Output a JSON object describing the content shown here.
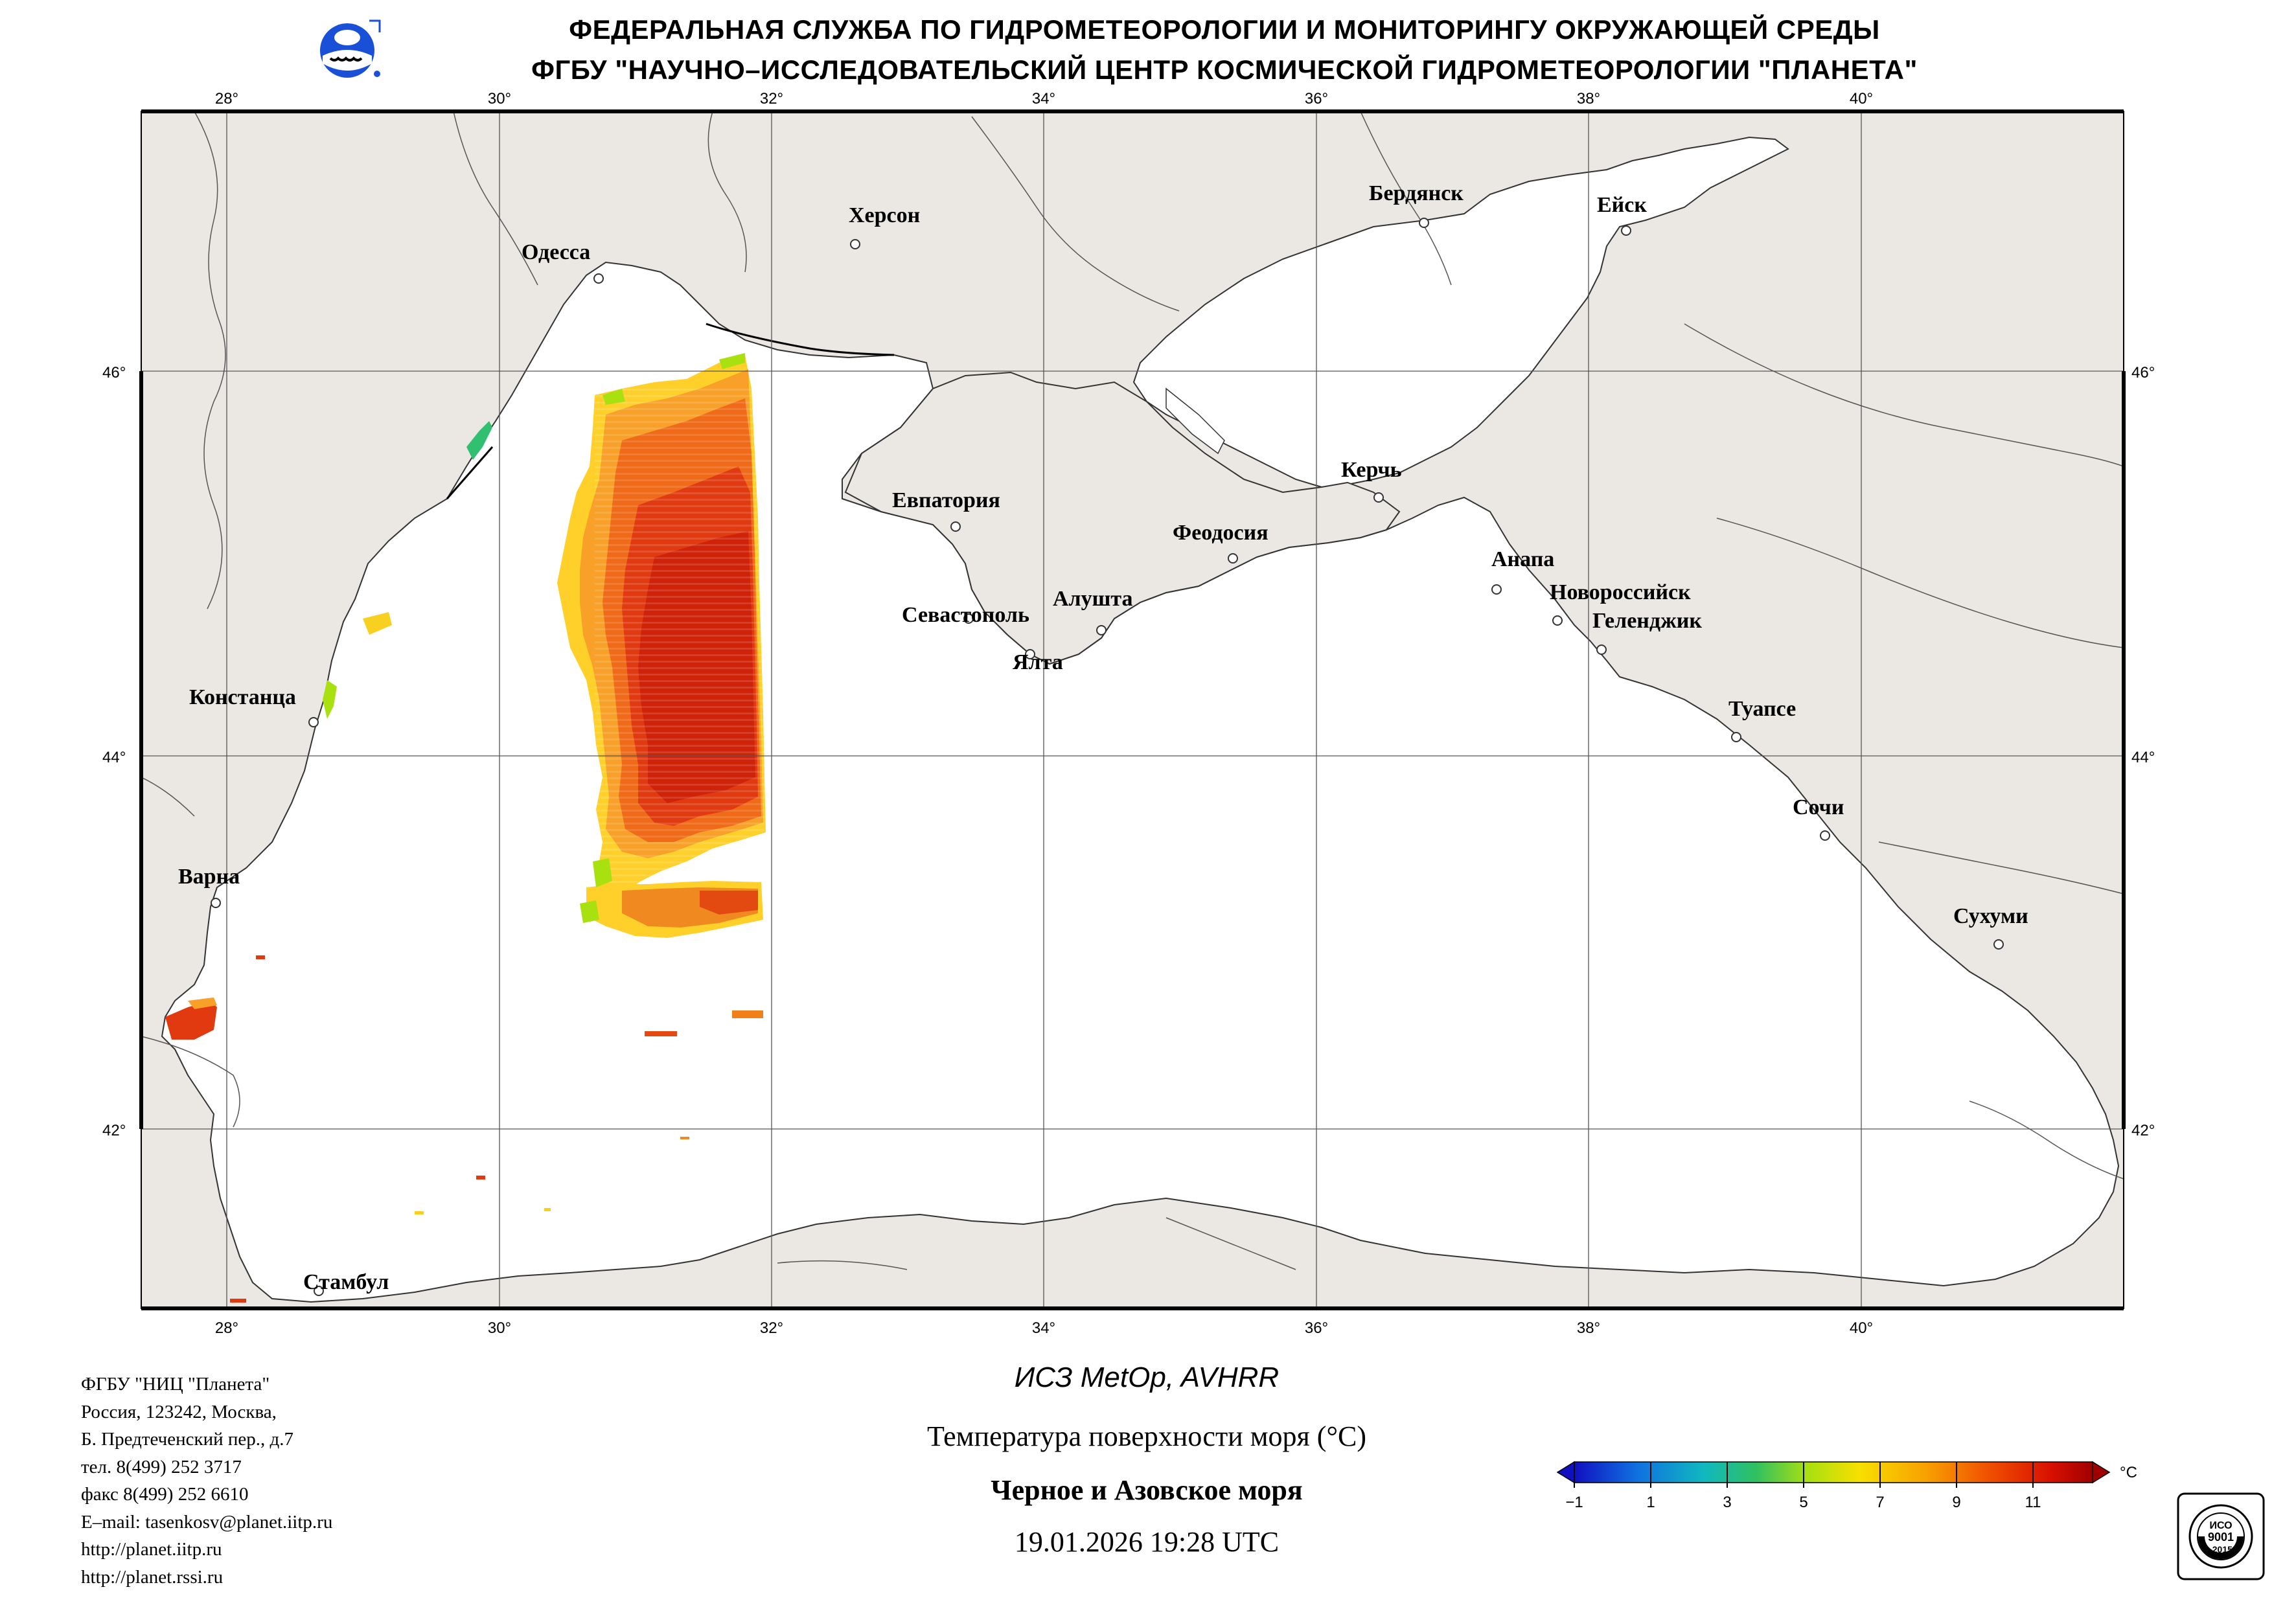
{
  "header": {
    "line1": "ФЕДЕРАЛЬНАЯ СЛУЖБА ПО ГИДРОМЕТЕОРОЛОГИИ И МОНИТОРИНГУ ОКРУЖАЮЩЕЙ СРЕДЫ",
    "line2": "ФГБУ \"НАУЧНО–ИССЛЕДОВАТЕЛЬСКИЙ ЦЕНТР КОСМИЧЕСКОЙ ГИДРОМЕТЕОРОЛОГИИ \"ПЛАНЕТА\""
  },
  "map": {
    "lon_labels": [
      "28°",
      "30°",
      "32°",
      "34°",
      "36°",
      "38°",
      "40°"
    ],
    "lat_labels": [
      "46°",
      "44°",
      "42°"
    ],
    "cities": {
      "odessa": "Одесса",
      "kherson": "Херсон",
      "berdyansk": "Бердянск",
      "yeysk": "Ейск",
      "evpatoria": "Евпатория",
      "kerch": "Керчь",
      "feodosia": "Феодосия",
      "anapa": "Анапа",
      "novorossiysk": "Новороссийск",
      "gelendzhik": "Геленджик",
      "sevastopol": "Севастополь",
      "alushta": "Алушта",
      "yalta": "Ялта",
      "constanta": "Констанца",
      "tuapse": "Туапсе",
      "sochi": "Сочи",
      "varna": "Варна",
      "sukhumi": "Сухуми",
      "istanbul": "Стамбул"
    },
    "colors": {
      "land": "#ebe7e3",
      "water": "#ffffff",
      "border": "#000000"
    }
  },
  "footer": {
    "lines": [
      "ФГБУ \"НИЦ \"Планета\"",
      "Россия, 123242, Москва,",
      "Б. Предтеченский пер., д.7",
      "тел. 8(499) 252 3717",
      "факс 8(499) 252 6610",
      "E–mail: tasenkosv@planet.iitp.ru",
      "http://planet.iitp.ru",
      "http://planet.rssi.ru"
    ]
  },
  "caption": {
    "satellite": "ИСЗ MetOp, AVHRR",
    "parameter": "Температура поверхности моря (°C)",
    "region": "Черное и Азовское моря",
    "datetime": "19.01.2026 19:28 UTC"
  },
  "colorbar": {
    "unit": "°C",
    "ticks": [
      "−1",
      "1",
      "3",
      "5",
      "7",
      "9",
      "11"
    ],
    "colors": [
      "#1010c0",
      "#1070e0",
      "#10b8c0",
      "#30c060",
      "#a8e010",
      "#f8e000",
      "#f8a000",
      "#f05000",
      "#d81000",
      "#a00000"
    ]
  },
  "certificate": {
    "iso": "ИСО",
    "standard": "9001",
    "year": "-2015"
  }
}
